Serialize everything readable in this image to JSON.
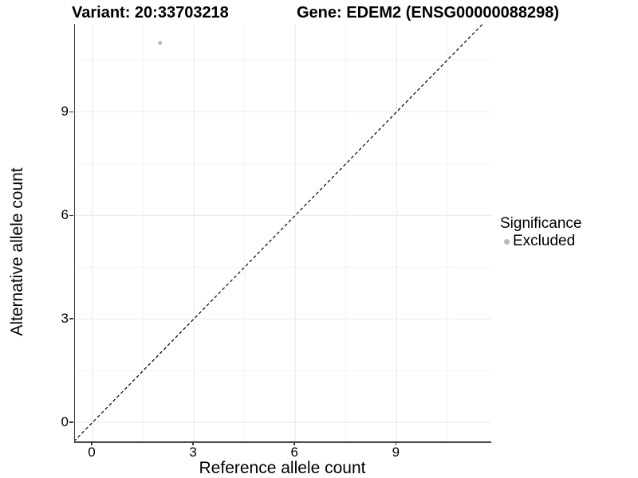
{
  "titles": {
    "variant": "Variant: 20:33703218",
    "gene": "Gene: EDEM2 (ENSG00000088298)"
  },
  "axes": {
    "x_label": "Reference allele count",
    "y_label": "Alternative allele count",
    "x_tick_labels": [
      "0",
      "3",
      "6",
      "9"
    ],
    "y_tick_labels": [
      "0",
      "3",
      "6",
      "9"
    ]
  },
  "legend": {
    "title": "Significance",
    "items": [
      {
        "label": "Excluded",
        "color": "#b9b9b9",
        "marker": "dot-icon"
      }
    ]
  },
  "colors": {
    "point": "#bdbdbd",
    "grid_major": "#e9e9e9",
    "grid_minor": "#f3f3f3",
    "axis_line": "#3a3a3a",
    "identity_line": "#000000",
    "background": "#ffffff"
  },
  "chart_data": {
    "type": "scatter",
    "title": "Variant: 20:33703218 | Gene: EDEM2 (ENSG00000088298)",
    "xlabel": "Reference allele count",
    "ylabel": "Alternative allele count",
    "xlim": [
      -0.52,
      11.8
    ],
    "ylim": [
      -0.55,
      11.55
    ],
    "x_ticks": [
      0,
      3,
      6,
      9
    ],
    "y_ticks": [
      0,
      3,
      6,
      9
    ],
    "x_minor_ticks": [
      1.5,
      4.5,
      7.5,
      10.5
    ],
    "y_minor_ticks": [
      1.5,
      4.5,
      7.5,
      10.5
    ],
    "grid": true,
    "legend_position": "right",
    "series": [
      {
        "name": "Excluded",
        "color": "#bdbdbd",
        "points": [
          {
            "x": 2,
            "y": 11
          }
        ]
      }
    ],
    "reference_line": {
      "type": "identity",
      "style": "dashed",
      "from": [
        -0.55,
        -0.55
      ],
      "to": [
        11.55,
        11.55
      ]
    }
  }
}
